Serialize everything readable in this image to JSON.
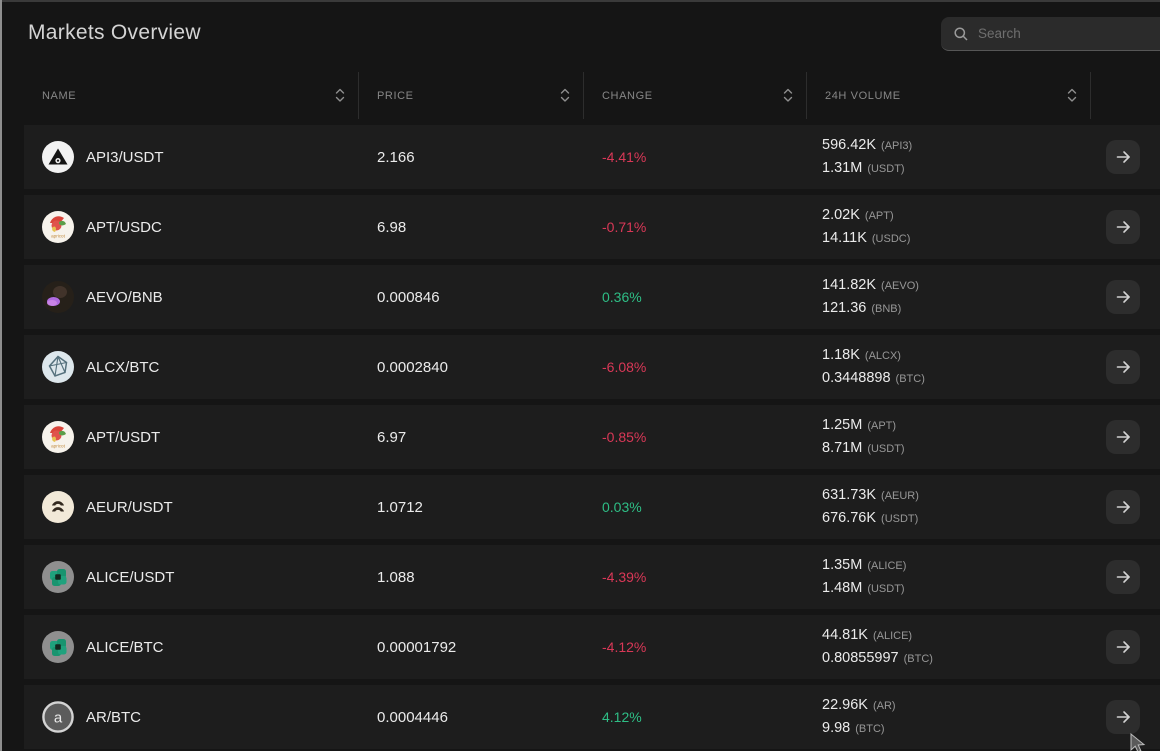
{
  "page": {
    "title": "Markets Overview"
  },
  "search": {
    "placeholder": "Search",
    "icon": "search-icon"
  },
  "colors": {
    "positive": "#2ebd85",
    "negative": "#d93857"
  },
  "table": {
    "columns": [
      {
        "label": "NAME",
        "sortable": true
      },
      {
        "label": "PRICE",
        "sortable": true
      },
      {
        "label": "CHANGE",
        "sortable": true
      },
      {
        "label": "24H VOLUME",
        "sortable": true
      },
      {
        "label": "",
        "sortable": false
      }
    ],
    "rows": [
      {
        "pair": "API3/USDT",
        "icon": "api3-logo",
        "price": "2.166",
        "change": "-4.41%",
        "direction": "down",
        "volume_base": "596.42K",
        "volume_base_unit": "(API3)",
        "volume_quote": "1.31M",
        "volume_quote_unit": "(USDT)"
      },
      {
        "pair": "APT/USDC",
        "icon": "apricot-logo",
        "price": "6.98",
        "change": "-0.71%",
        "direction": "down",
        "volume_base": "2.02K",
        "volume_base_unit": "(APT)",
        "volume_quote": "14.11K",
        "volume_quote_unit": "(USDC)"
      },
      {
        "pair": "AEVO/BNB",
        "icon": "aevo-logo",
        "price": "0.000846",
        "change": "0.36%",
        "direction": "up",
        "volume_base": "141.82K",
        "volume_base_unit": "(AEVO)",
        "volume_quote": "121.36",
        "volume_quote_unit": "(BNB)"
      },
      {
        "pair": "ALCX/BTC",
        "icon": "alcx-logo",
        "price": "0.0002840",
        "change": "-6.08%",
        "direction": "down",
        "volume_base": "1.18K",
        "volume_base_unit": "(ALCX)",
        "volume_quote": "0.3448898",
        "volume_quote_unit": "(BTC)"
      },
      {
        "pair": "APT/USDT",
        "icon": "apricot-logo",
        "price": "6.97",
        "change": "-0.85%",
        "direction": "down",
        "volume_base": "1.25M",
        "volume_base_unit": "(APT)",
        "volume_quote": "8.71M",
        "volume_quote_unit": "(USDT)"
      },
      {
        "pair": "AEUR/USDT",
        "icon": "aeur-logo",
        "price": "1.0712",
        "change": "0.03%",
        "direction": "up",
        "volume_base": "631.73K",
        "volume_base_unit": "(AEUR)",
        "volume_quote": "676.76K",
        "volume_quote_unit": "(USDT)"
      },
      {
        "pair": "ALICE/USDT",
        "icon": "alice-logo",
        "price": "1.088",
        "change": "-4.39%",
        "direction": "down",
        "volume_base": "1.35M",
        "volume_base_unit": "(ALICE)",
        "volume_quote": "1.48M",
        "volume_quote_unit": "(USDT)"
      },
      {
        "pair": "ALICE/BTC",
        "icon": "alice-logo",
        "price": "0.00001792",
        "change": "-4.12%",
        "direction": "down",
        "volume_base": "44.81K",
        "volume_base_unit": "(ALICE)",
        "volume_quote": "0.80855997",
        "volume_quote_unit": "(BTC)"
      },
      {
        "pair": "AR/BTC",
        "icon": "ar-logo",
        "price": "0.0004446",
        "change": "4.12%",
        "direction": "up",
        "volume_base": "22.96K",
        "volume_base_unit": "(AR)",
        "volume_quote": "9.98",
        "volume_quote_unit": "(BTC)"
      }
    ]
  }
}
